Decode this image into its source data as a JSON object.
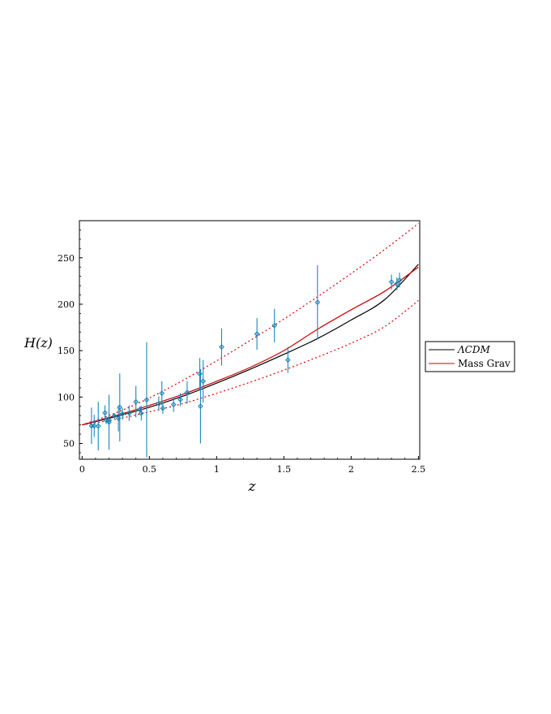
{
  "chart_data": {
    "type": "scatter",
    "xlabel": "z",
    "ylabel": "H(z)",
    "xlim": [
      -0.02,
      2.51
    ],
    "ylim": [
      33,
      290
    ],
    "x_ticks": [
      0,
      0.5,
      1,
      1.5,
      2,
      2.5
    ],
    "x_tick_labels": [
      "0",
      "0.5",
      "1",
      "1.5",
      "2",
      "2.5"
    ],
    "y_ticks": [
      50,
      100,
      150,
      200,
      250
    ],
    "y_tick_labels": [
      "50",
      "100",
      "150",
      "200",
      "250"
    ],
    "grid": false,
    "legend_position": "right",
    "legend": [
      {
        "label": "ΛCDM",
        "italic": true,
        "color": "#000000"
      },
      {
        "label": "Mass Grav",
        "italic": false,
        "color": "#cc0000"
      }
    ],
    "series": [
      {
        "name": "ΛCDM",
        "kind": "line",
        "color": "#000000",
        "x": [
          0,
          0.25,
          0.5,
          0.75,
          1.0,
          1.25,
          1.5,
          1.75,
          2.0,
          2.25,
          2.5
        ],
        "y": [
          70,
          79,
          89,
          101,
          115,
          130,
          146,
          163,
          183,
          205,
          243
        ]
      },
      {
        "name": "Mass Grav",
        "kind": "line",
        "color": "#cc0000",
        "x": [
          0,
          0.25,
          0.5,
          0.75,
          1.0,
          1.25,
          1.5,
          1.75,
          2.0,
          2.25,
          2.5
        ],
        "y": [
          70,
          80,
          91,
          103,
          117,
          132,
          150,
          173,
          194,
          214,
          240
        ]
      },
      {
        "kind": "dotted-line",
        "color": "#dd0000",
        "x": [
          0,
          0.25,
          0.5,
          0.75,
          1.0,
          1.25,
          1.5,
          1.75,
          2.0,
          2.25,
          2.5
        ],
        "y": [
          70,
          83,
          99,
          118,
          139,
          161,
          184,
          208,
          233,
          259,
          287
        ]
      },
      {
        "kind": "dotted-line",
        "color": "#dd0000",
        "x": [
          0,
          0.25,
          0.5,
          0.75,
          1.0,
          1.25,
          1.5,
          1.75,
          2.0,
          2.25,
          2.5
        ],
        "y": [
          70,
          76,
          84,
          93,
          104,
          116,
          129,
          143,
          158,
          176,
          204
        ]
      },
      {
        "kind": "errorbar-points",
        "color": "#1b87b8",
        "points": [
          {
            "x": 0.07,
            "y": 69,
            "err": 19.6
          },
          {
            "x": 0.09,
            "y": 69,
            "err": 12
          },
          {
            "x": 0.12,
            "y": 68.6,
            "err": 26.2
          },
          {
            "x": 0.17,
            "y": 83,
            "err": 8
          },
          {
            "x": 0.179,
            "y": 75,
            "err": 4
          },
          {
            "x": 0.199,
            "y": 75,
            "err": 5
          },
          {
            "x": 0.2,
            "y": 72.9,
            "err": 29.6
          },
          {
            "x": 0.24,
            "y": 79.7,
            "err": 2.7
          },
          {
            "x": 0.27,
            "y": 77,
            "err": 14
          },
          {
            "x": 0.28,
            "y": 88.8,
            "err": 36.6
          },
          {
            "x": 0.3,
            "y": 81.7,
            "err": 6.2
          },
          {
            "x": 0.35,
            "y": 82.7,
            "err": 8.4
          },
          {
            "x": 0.4,
            "y": 95,
            "err": 17
          },
          {
            "x": 0.43,
            "y": 86.5,
            "err": 3.7
          },
          {
            "x": 0.44,
            "y": 82.6,
            "err": 7.8
          },
          {
            "x": 0.48,
            "y": 97,
            "err": 62
          },
          {
            "x": 0.57,
            "y": 92.9,
            "err": 7.8
          },
          {
            "x": 0.593,
            "y": 104,
            "err": 13
          },
          {
            "x": 0.6,
            "y": 87.9,
            "err": 6.1
          },
          {
            "x": 0.68,
            "y": 92,
            "err": 8
          },
          {
            "x": 0.73,
            "y": 97.3,
            "err": 7
          },
          {
            "x": 0.781,
            "y": 105,
            "err": 12
          },
          {
            "x": 0.875,
            "y": 125,
            "err": 17
          },
          {
            "x": 0.88,
            "y": 90,
            "err": 40
          },
          {
            "x": 0.9,
            "y": 117,
            "err": 23
          },
          {
            "x": 1.037,
            "y": 154,
            "err": 20
          },
          {
            "x": 1.3,
            "y": 168,
            "err": 17
          },
          {
            "x": 1.43,
            "y": 177,
            "err": 18
          },
          {
            "x": 1.53,
            "y": 140,
            "err": 14
          },
          {
            "x": 1.75,
            "y": 202,
            "err": 40
          },
          {
            "x": 2.3,
            "y": 224,
            "err": 8
          },
          {
            "x": 2.34,
            "y": 222,
            "err": 7
          },
          {
            "x": 2.36,
            "y": 226,
            "err": 8
          }
        ]
      }
    ]
  }
}
